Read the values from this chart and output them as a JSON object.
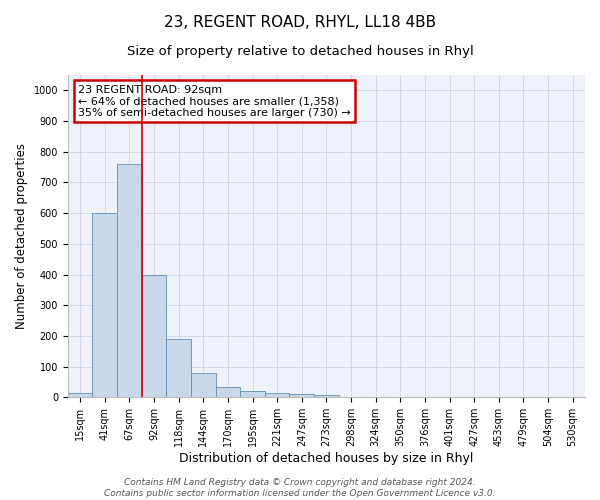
{
  "title": "23, REGENT ROAD, RHYL, LL18 4BB",
  "subtitle": "Size of property relative to detached houses in Rhyl",
  "xlabel": "Distribution of detached houses by size in Rhyl",
  "ylabel": "Number of detached properties",
  "bin_labels": [
    "15sqm",
    "41sqm",
    "67sqm",
    "92sqm",
    "118sqm",
    "144sqm",
    "170sqm",
    "195sqm",
    "221sqm",
    "247sqm",
    "273sqm",
    "298sqm",
    "324sqm",
    "350sqm",
    "376sqm",
    "401sqm",
    "427sqm",
    "453sqm",
    "479sqm",
    "504sqm",
    "530sqm"
  ],
  "bar_heights": [
    15,
    600,
    760,
    400,
    190,
    78,
    35,
    20,
    15,
    12,
    8,
    0,
    0,
    0,
    0,
    0,
    0,
    0,
    0,
    0,
    0
  ],
  "bar_color": "#c8d8ea",
  "bar_edge_color": "#6090b0",
  "vline_x": 2.5,
  "vline_color": "#cc0000",
  "annotation_text": "23 REGENT ROAD: 92sqm\n← 64% of detached houses are smaller (1,358)\n35% of semi-detached houses are larger (730) →",
  "annotation_box_color": "#cc0000",
  "ylim": [
    0,
    1050
  ],
  "yticks": [
    0,
    100,
    200,
    300,
    400,
    500,
    600,
    700,
    800,
    900,
    1000
  ],
  "grid_color": "#d0d8ea",
  "background_color": "#eef2f8",
  "footer_text": "Contains HM Land Registry data © Crown copyright and database right 2024.\nContains public sector information licensed under the Open Government Licence v3.0.",
  "title_fontsize": 11,
  "subtitle_fontsize": 9.5,
  "xlabel_fontsize": 9,
  "ylabel_fontsize": 8.5,
  "tick_fontsize": 7,
  "footer_fontsize": 6.5,
  "annotation_fontsize": 8
}
